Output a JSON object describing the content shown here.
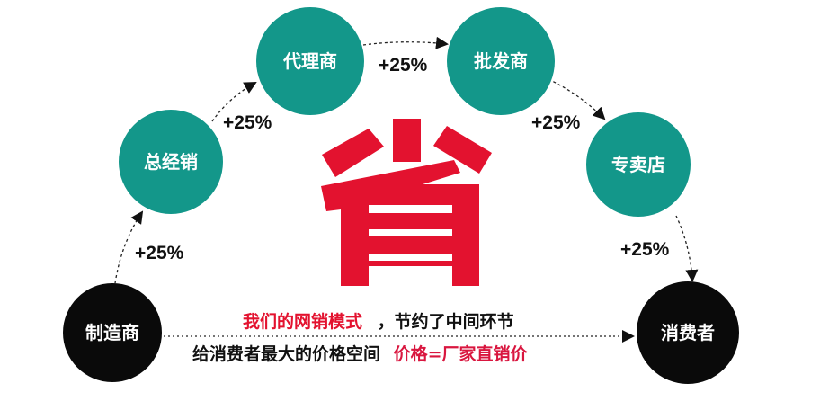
{
  "colors": {
    "teal": "#13978a",
    "black": "#0a0a0a",
    "red": "#e3122f",
    "pink_red": "#d9163f"
  },
  "nodes": [
    {
      "label": "制造商",
      "color": "black"
    },
    {
      "label": "总经销",
      "color": "teal"
    },
    {
      "label": "代理商",
      "color": "teal"
    },
    {
      "label": "批发商",
      "color": "teal"
    },
    {
      "label": "专卖店",
      "color": "teal"
    },
    {
      "label": "消费者",
      "color": "black"
    }
  ],
  "markups": [
    "+25%",
    "+25%",
    "+25%",
    "+25%",
    "+25%"
  ],
  "center_character": "省",
  "caption": {
    "line1_red": "我们的网销模式",
    "line1_black": "，节约了中间环节",
    "line2_black": "给消费者最大的价格空间",
    "line2_red": "价格=厂家直销价"
  }
}
